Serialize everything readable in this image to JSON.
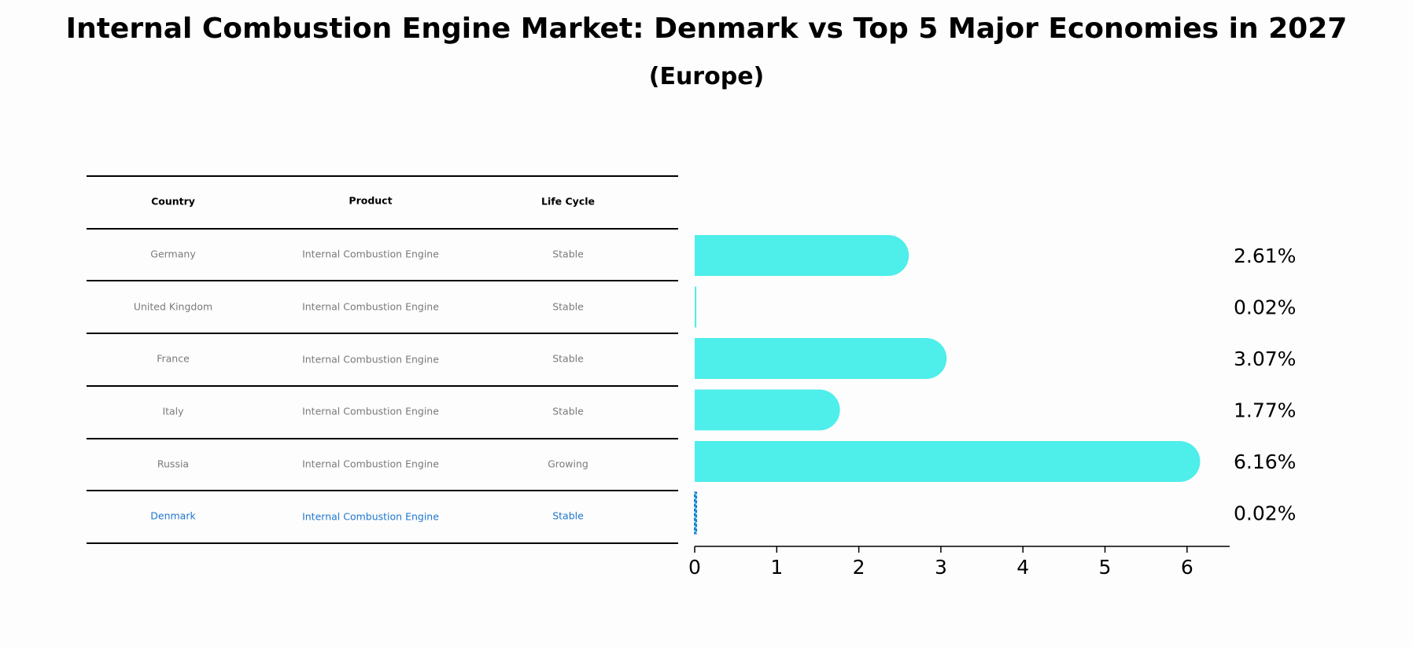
{
  "title": "Internal Combustion Engine Market: Denmark vs Top 5 Major Economies in 2027",
  "subtitle": "(Europe)",
  "table": {
    "headers": [
      "Country",
      "Product",
      "Life Cycle"
    ],
    "rows": [
      [
        "Germany",
        "Internal Combustion Engine",
        "Stable"
      ],
      [
        "United Kingdom",
        "Internal Combustion Engine",
        "Stable"
      ],
      [
        "France",
        "Internal Combustion Engine",
        "Stable"
      ],
      [
        "Italy",
        "Internal Combustion Engine",
        "Stable"
      ],
      [
        "Russia",
        "Internal Combustion Engine",
        "Growing"
      ],
      [
        "Denmark",
        "Internal Combustion Engine",
        "Stable"
      ]
    ],
    "highlight_row": "Denmark"
  },
  "colors": {
    "bar": "#4eeeea",
    "highlight": "#1f77d0",
    "text_muted": "#7a7a7a"
  },
  "chart_data": {
    "type": "bar",
    "orientation": "horizontal",
    "categories": [
      "Germany",
      "United Kingdom",
      "France",
      "Italy",
      "Russia",
      "Denmark"
    ],
    "values": [
      2.61,
      0.02,
      3.07,
      1.77,
      6.16,
      0.02
    ],
    "value_labels": [
      "2.61%",
      "0.02%",
      "3.07%",
      "1.77%",
      "6.16%",
      "0.02%"
    ],
    "xlim": [
      0,
      6.5
    ],
    "xticks": [
      0,
      1,
      2,
      3,
      4,
      5,
      6
    ],
    "grid": false,
    "highlight_category": "Denmark"
  }
}
